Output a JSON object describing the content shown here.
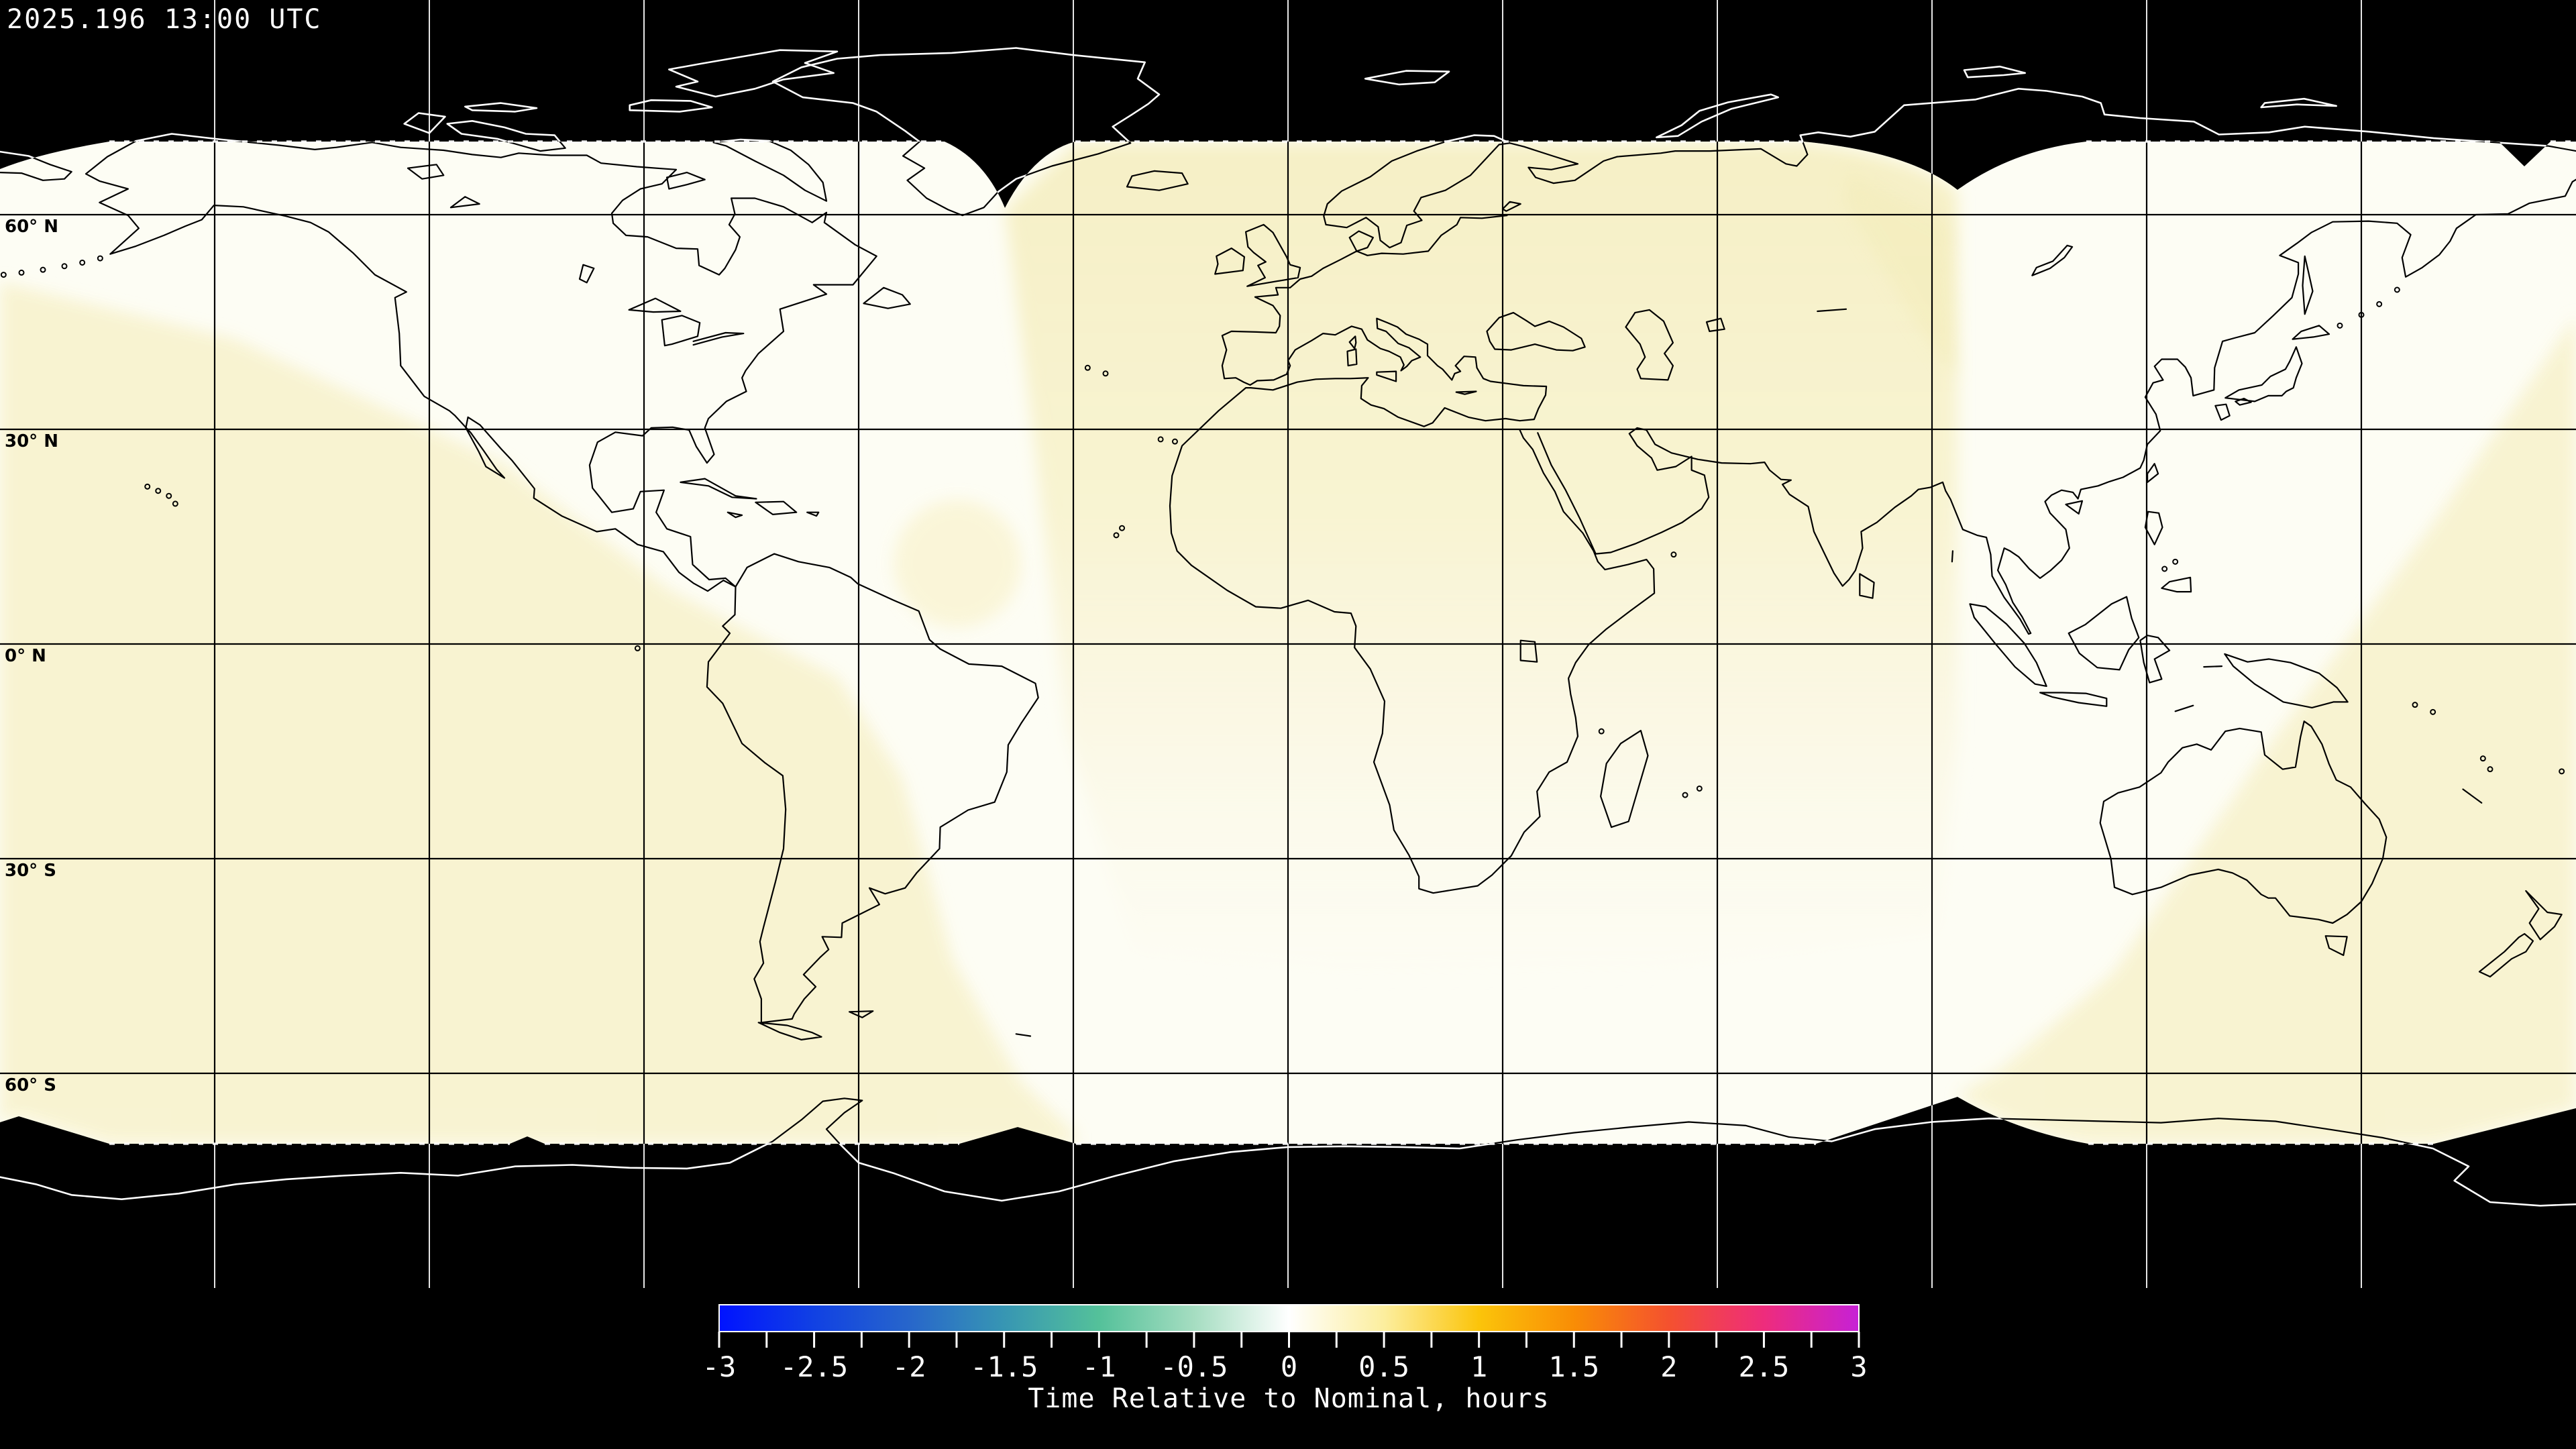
{
  "header": {
    "timestamp": "2025.196 13:00 UTC"
  },
  "map": {
    "projection": "equirectangular",
    "latitude_labels": [
      "60° N",
      "30° N",
      "0° N",
      "30° S",
      "60° S"
    ],
    "gridline_spacing_degrees": 30,
    "coverage_lat_limit_degrees": 70,
    "colors": {
      "background": "#000000",
      "no_coverage": "#000000",
      "coverage_white": "#fdfdf4",
      "coverage_cream": "#f8f3d0",
      "coverage_deep_cream": "#f3ecb8",
      "coverage_blob": "#f8f0c2",
      "gridline_on_map": "#000000",
      "gridline_on_dark": "#ffffff",
      "coastline_on_map": "#000000",
      "coastline_on_dark": "#ffffff",
      "boundary_tick": "#ffffff"
    }
  },
  "colorbar": {
    "label": "Time Relative to Nominal, hours",
    "min": -3,
    "max": 3,
    "minor_tick_step": 0.25,
    "tick_labels": [
      "-3",
      "-2.5",
      "-2",
      "-1.5",
      "-1",
      "-0.5",
      "0",
      "0.5",
      "1",
      "1.5",
      "2",
      "2.5",
      "3"
    ],
    "gradient_stops": [
      {
        "value": -3.0,
        "color": "#0013ff"
      },
      {
        "value": -2.5,
        "color": "#1141e3"
      },
      {
        "value": -2.0,
        "color": "#2766cb"
      },
      {
        "value": -1.5,
        "color": "#3796b3"
      },
      {
        "value": -1.0,
        "color": "#54c19a"
      },
      {
        "value": -0.5,
        "color": "#a5ddc1"
      },
      {
        "value": 0.0,
        "color": "#ffffff"
      },
      {
        "value": 0.5,
        "color": "#fcee9e"
      },
      {
        "value": 1.0,
        "color": "#fbc40a"
      },
      {
        "value": 1.5,
        "color": "#f98d05"
      },
      {
        "value": 2.0,
        "color": "#f4512f"
      },
      {
        "value": 2.5,
        "color": "#ee2c7c"
      },
      {
        "value": 3.0,
        "color": "#c621d6"
      }
    ]
  },
  "chart_data": {
    "type": "heatmap",
    "title": "Time Relative to Nominal, hours",
    "timestamp": "2025.196 13:00 UTC",
    "colorbar_range": [
      -3,
      3
    ],
    "colorbar_ticks": [
      -3,
      -2.5,
      -2,
      -1.5,
      -1,
      -0.5,
      0,
      0.5,
      1,
      1.5,
      2,
      2.5,
      3
    ],
    "map_extent": {
      "lon": [
        -180,
        180
      ],
      "lat": [
        -90,
        90
      ]
    },
    "coverage_band_lat_limit": 70,
    "observed_values_hours": {
      "white_swath_regions": 0.0,
      "cream_swath_regions": 0.3,
      "outside_coverage": null
    }
  }
}
